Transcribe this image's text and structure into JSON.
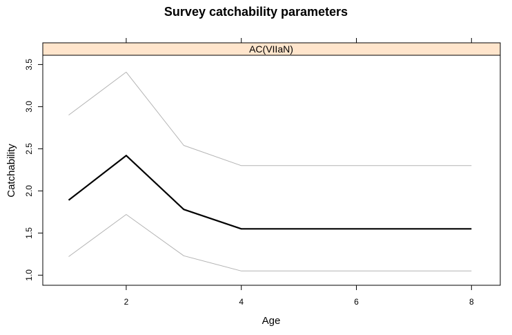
{
  "chart_data": {
    "type": "line",
    "title": "Survey catchability parameters",
    "panel": "AC(VIIaN)",
    "xlabel": "Age",
    "ylabel": "Catchability",
    "x": [
      1,
      2,
      3,
      4,
      5,
      6,
      7,
      8
    ],
    "x_ticks": [
      2,
      4,
      6,
      8
    ],
    "y_ticks": [
      1.0,
      1.5,
      2.0,
      2.5,
      3.0,
      3.5
    ],
    "y_tick_labels": [
      "1.0",
      "1.5",
      "2.0",
      "2.5",
      "3.0",
      "3.5"
    ],
    "xlim": [
      0.55,
      8.5
    ],
    "ylim": [
      0.88,
      3.61
    ],
    "series": [
      {
        "role": "upper",
        "color": "#b3b3b3",
        "values": [
          2.9,
          3.41,
          2.54,
          2.3,
          2.3,
          2.3,
          2.3,
          2.3
        ]
      },
      {
        "role": "estimate",
        "color": "#000000",
        "values": [
          1.89,
          2.42,
          1.78,
          1.55,
          1.55,
          1.55,
          1.55,
          1.55
        ]
      },
      {
        "role": "lower",
        "color": "#b3b3b3",
        "values": [
          1.22,
          1.72,
          1.23,
          1.05,
          1.05,
          1.05,
          1.05,
          1.05
        ]
      }
    ],
    "grid": false,
    "colors": {
      "strip": "#ffe5cc",
      "frame": "#000000"
    }
  }
}
